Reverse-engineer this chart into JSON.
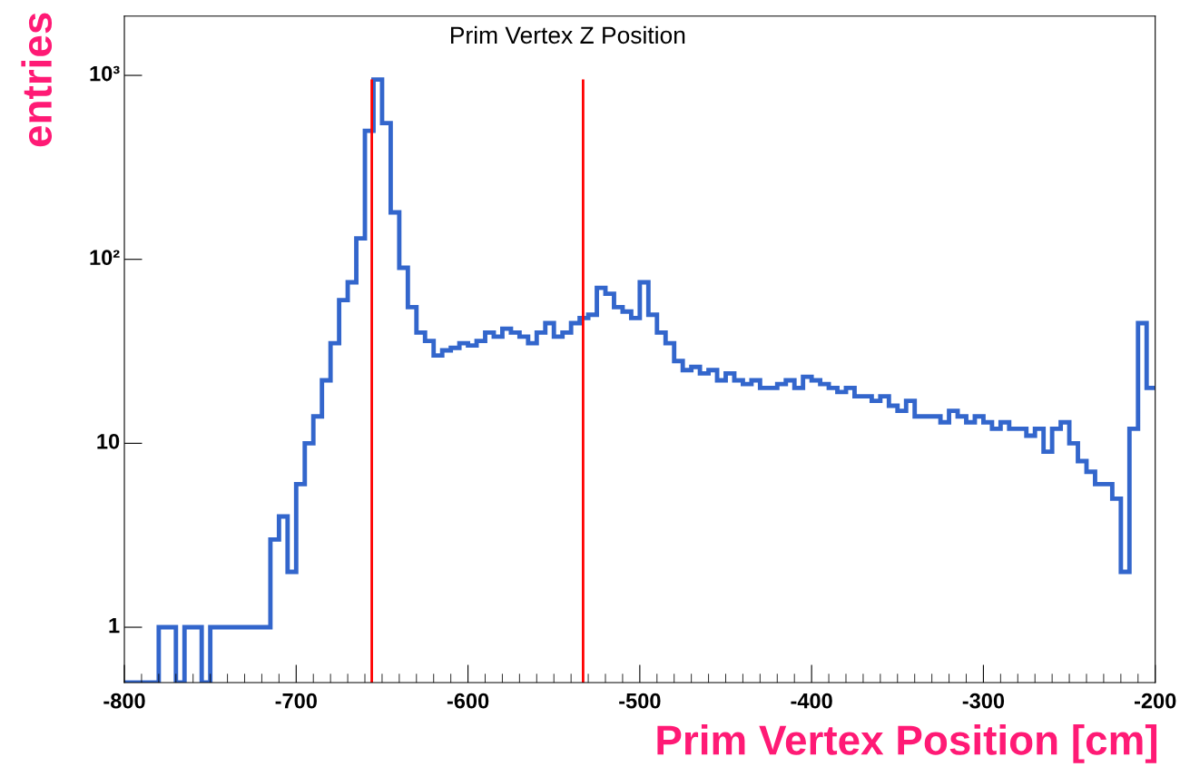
{
  "chart_data": {
    "type": "histogram",
    "title": "Prim Vertex Z Position",
    "xlabel": "Prim Vertex Position [cm]",
    "ylabel": "entries",
    "bins": [
      -800,
      -795,
      -790,
      -785,
      -780,
      -775,
      -770,
      -765,
      -760,
      -755,
      -750,
      -745,
      -740,
      -735,
      -730,
      -725,
      -720,
      -715,
      -710,
      -705,
      -700,
      -695,
      -690,
      -685,
      -680,
      -675,
      -670,
      -665,
      -660,
      -655,
      -650,
      -645,
      -640,
      -635,
      -630,
      -625,
      -620,
      -615,
      -610,
      -605,
      -600,
      -595,
      -590,
      -585,
      -580,
      -575,
      -570,
      -565,
      -560,
      -555,
      -550,
      -545,
      -540,
      -535,
      -530,
      -525,
      -520,
      -515,
      -510,
      -505,
      -500,
      -495,
      -490,
      -485,
      -480,
      -475,
      -470,
      -465,
      -460,
      -455,
      -450,
      -445,
      -440,
      -435,
      -430,
      -425,
      -420,
      -415,
      -410,
      -405,
      -400,
      -395,
      -390,
      -385,
      -380,
      -375,
      -370,
      -365,
      -360,
      -355,
      -350,
      -345,
      -340,
      -335,
      -330,
      -325,
      -320,
      -315,
      -310,
      -305,
      -300,
      -295,
      -290,
      -285,
      -280,
      -275,
      -270,
      -265,
      -260,
      -255,
      -250,
      -245,
      -240,
      -235,
      -230,
      -225,
      -220,
      -215,
      -210,
      -205,
      -200
    ],
    "values": [
      null,
      null,
      null,
      null,
      1,
      1,
      null,
      1,
      1,
      null,
      1,
      1,
      1,
      1,
      1,
      1,
      1,
      3,
      4,
      2,
      6,
      10,
      14,
      22,
      35,
      60,
      75,
      130,
      500,
      950,
      550,
      180,
      90,
      55,
      40,
      36,
      30,
      32,
      33,
      35,
      34,
      36,
      40,
      38,
      42,
      40,
      38,
      35,
      40,
      45,
      38,
      40,
      45,
      48,
      50,
      70,
      65,
      55,
      52,
      48,
      75,
      50,
      40,
      35,
      28,
      25,
      26,
      24,
      25,
      22,
      24,
      22,
      21,
      22,
      20,
      20,
      21,
      22,
      20,
      23,
      22,
      21,
      20,
      19,
      20,
      18,
      18,
      17,
      18,
      16,
      15,
      17,
      14,
      14,
      14,
      13,
      15,
      14,
      13,
      14,
      13,
      12,
      13,
      12,
      12,
      11,
      12,
      9,
      12,
      13,
      10,
      8,
      7,
      6,
      6,
      5,
      2,
      12,
      45,
      20
    ],
    "color": "#3366cc",
    "xlim": [
      -800,
      -200
    ],
    "xticks": [
      -800,
      -700,
      -600,
      -500,
      -400,
      -300,
      -200
    ],
    "ylim": [
      0.5,
      2100
    ],
    "yticks": [
      1,
      10,
      {
        "value": 100,
        "label": "10²"
      },
      {
        "value": 1000,
        "label": "10³"
      }
    ],
    "log": true,
    "ref_lines": [
      {
        "axis": "x",
        "value": -656,
        "color": "#ff0000"
      },
      {
        "axis": "x",
        "value": -533,
        "color": "#ff0000"
      }
    ]
  }
}
